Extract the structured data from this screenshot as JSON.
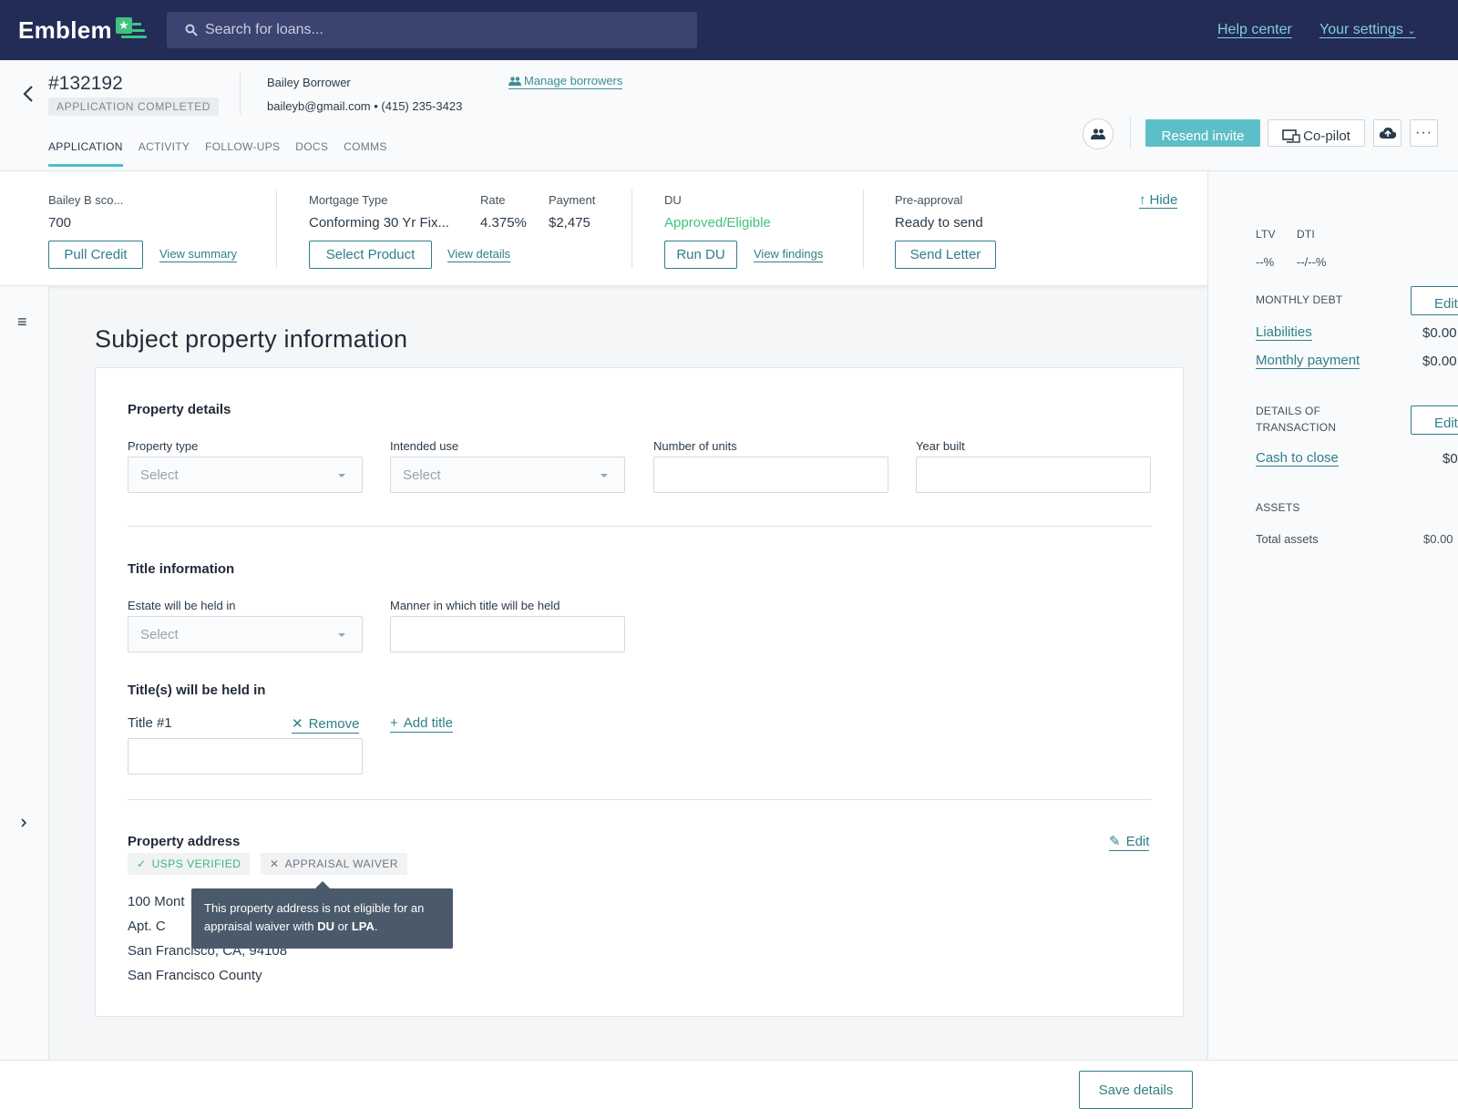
{
  "nav": {
    "brand": "Emblem",
    "search_placeholder": "Search for loans...",
    "help_center": "Help center",
    "your_settings": "Your settings"
  },
  "header": {
    "loan_id": "#132192",
    "status": "APPLICATION COMPLETED",
    "borrower_name": "Bailey Borrower",
    "borrower_contact": "baileyb@gmail.com • (415) 235-3423",
    "manage_borrowers": "Manage borrowers",
    "tabs": [
      {
        "label": "APPLICATION",
        "active": true
      },
      {
        "label": "ACTIVITY",
        "active": false
      },
      {
        "label": "FOLLOW-UPS",
        "active": false
      },
      {
        "label": "DOCS",
        "active": false
      },
      {
        "label": "COMMS",
        "active": false
      }
    ],
    "resend_invite": "Resend invite",
    "copilot": "Co-pilot"
  },
  "summary": {
    "credit": {
      "label": "Bailey B sco...",
      "value": "700",
      "button": "Pull Credit",
      "link": "View summary"
    },
    "mortgage": {
      "type_label": "Mortgage Type",
      "type_value": "Conforming 30 Yr Fix...",
      "rate_label": "Rate",
      "rate_value": "4.375%",
      "payment_label": "Payment",
      "payment_value": "$2,475",
      "button": "Select Product",
      "link": "View details"
    },
    "du": {
      "label": "DU",
      "value": "Approved/Eligible",
      "button": "Run DU",
      "link": "View findings"
    },
    "preapproval": {
      "label": "Pre-approval",
      "value": "Ready to send",
      "button": "Send Letter"
    },
    "hide": "Hide"
  },
  "right_panel": {
    "ltv_label": "LTV",
    "dti_label": "DTI",
    "ltv_value": "--%",
    "dti_value": "--/--%",
    "monthly_debt_label": "MONTHLY DEBT",
    "edit": "Edit",
    "liabilities": "Liabilities",
    "liabilities_value": "$0.00",
    "monthly_payment": "Monthly payment",
    "monthly_payment_value": "$0.00",
    "transaction_label_1": "DETAILS OF",
    "transaction_label_2": "TRANSACTION",
    "cash_to_close": "Cash to close",
    "cash_to_close_value": "$0",
    "assets_label": "ASSETS",
    "total_assets": "Total assets",
    "total_assets_value": "$0.00"
  },
  "main": {
    "page_title": "Subject property information",
    "property_details": {
      "title": "Property details",
      "property_type": {
        "label": "Property type",
        "placeholder": "Select"
      },
      "intended_use": {
        "label": "Intended use",
        "placeholder": "Select"
      },
      "number_of_units": {
        "label": "Number of units",
        "value": ""
      },
      "year_built": {
        "label": "Year built",
        "value": ""
      }
    },
    "title_information": {
      "title": "Title information",
      "estate": {
        "label": "Estate will be held in",
        "placeholder": "Select"
      },
      "manner": {
        "label": "Manner in which title will be held",
        "value": ""
      },
      "held_in_title": "Title(s) will be held in",
      "title_1_label": "Title #1",
      "remove": "Remove",
      "add_title": "Add title"
    },
    "property_address": {
      "title": "Property address",
      "edit": "Edit",
      "usps_badge": "USPS VERIFIED",
      "appraisal_badge": "APPRAISAL WAIVER",
      "line1": "100 Mont",
      "line2": "Apt. C",
      "line3": "San Francisco, CA, 94108",
      "line4": "San Francisco County",
      "tooltip_pre": "This property address is not eligible for an appraisal waiver with ",
      "tooltip_du": "DU",
      "tooltip_or": " or ",
      "tooltip_lpa": "LPA",
      "tooltip_end": "."
    }
  },
  "footer": {
    "save_details": "Save details"
  },
  "colors": {
    "nav_bg": "#232b57",
    "accent": "#5cbfc7",
    "link": "#2f7f8a",
    "success": "#3fc380"
  }
}
